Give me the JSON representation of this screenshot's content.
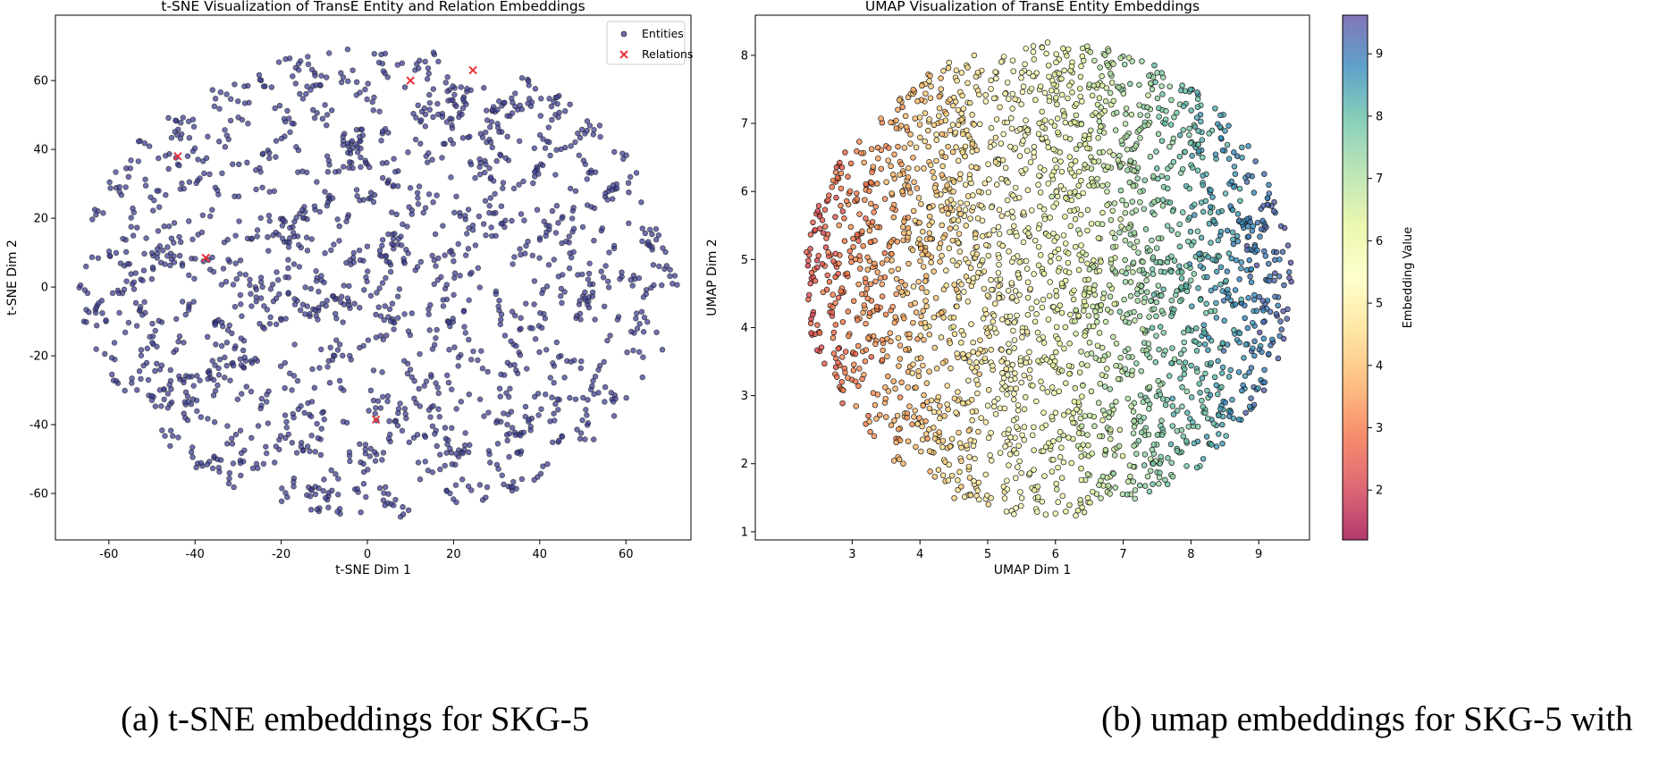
{
  "chart_data": [
    {
      "type": "scatter",
      "title": "t-SNE Visualization of TransE Entity and Relation Embeddings",
      "xlabel": "t-SNE Dim 1",
      "ylabel": "t-SNE Dim 2",
      "xlim": [
        -72.4,
        75.1
      ],
      "ylim": [
        -73.5,
        79
      ],
      "xticks": [
        -60,
        -40,
        -20,
        0,
        20,
        40,
        60
      ],
      "yticks": [
        -60,
        -40,
        -20,
        0,
        20,
        40,
        60
      ],
      "grid": false,
      "legend": "top-right",
      "series": [
        {
          "name": "Entities",
          "marker": "circle",
          "color": "#3d3f8f",
          "extent": {
            "x": [
              -67,
              72
            ],
            "y": [
              -67,
              70
            ]
          }
        },
        {
          "name": "Relations",
          "marker": "x",
          "color": "#e8323a",
          "points": [
            [
              -44,
              38
            ],
            [
              -37.5,
              8.5
            ],
            [
              10,
              60
            ],
            [
              24.5,
              63
            ],
            [
              2,
              -38.5
            ]
          ]
        }
      ]
    },
    {
      "type": "scatter",
      "title": "UMAP Visualization of TransE Entity Embeddings",
      "xlabel": "UMAP Dim 1",
      "ylabel": "UMAP Dim 2",
      "xlim": [
        1.57,
        9.75
      ],
      "ylim": [
        0.88,
        8.59
      ],
      "xticks": [
        3,
        4,
        5,
        6,
        7,
        8,
        9
      ],
      "yticks": [
        1,
        2,
        3,
        4,
        5,
        6,
        7,
        8
      ],
      "grid": false,
      "colormap": "Spectral",
      "colorbar": {
        "label": "Embedding Value",
        "range": [
          1.2,
          9.62
        ],
        "ticks": [
          2,
          3,
          4,
          5,
          6,
          7,
          8,
          9
        ]
      },
      "series": [
        {
          "marker": "circle",
          "extent": {
            "x": [
              2.3,
              9.5
            ],
            "y": [
              1.2,
              8.2
            ]
          }
        }
      ]
    }
  ],
  "captions": {
    "a": "(a) t-SNE embeddings for SKG-5",
    "b": "(b) umap embeddings for SKG-5 with"
  }
}
